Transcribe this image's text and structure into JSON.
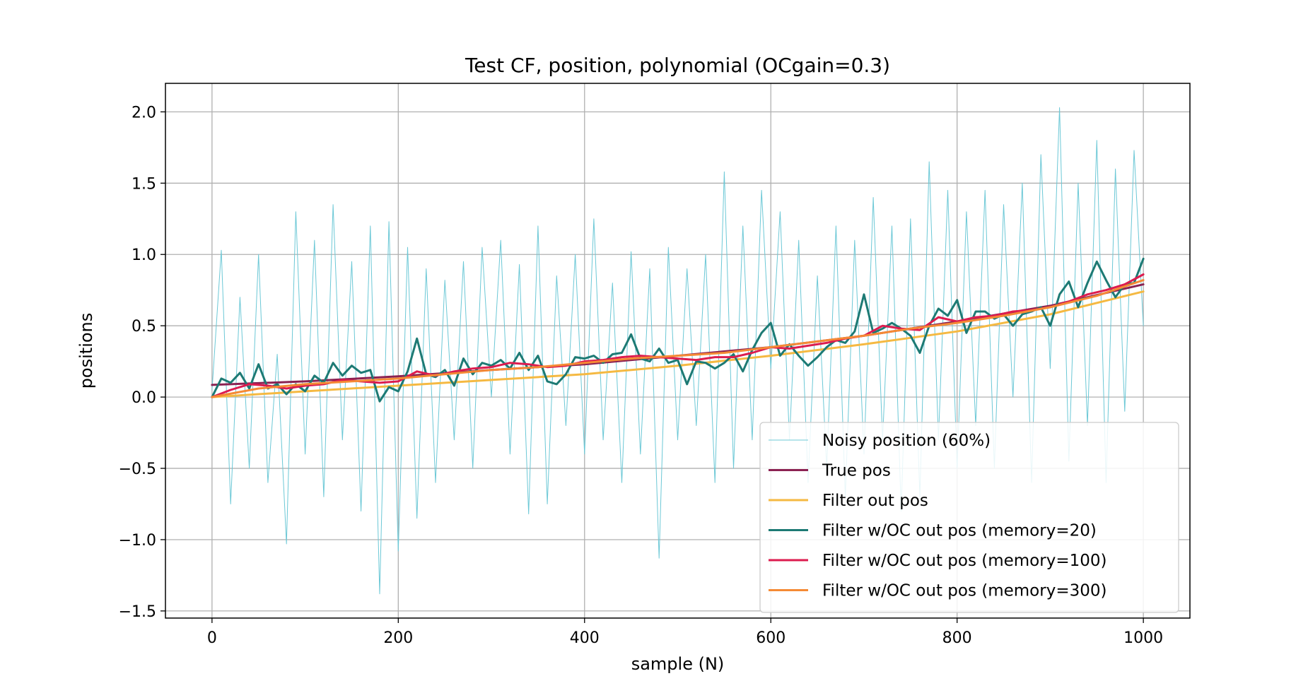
{
  "chart_data": {
    "type": "line",
    "title": "Test CF, position, polynomial (OCgain=0.3)",
    "xlabel": "sample (N)",
    "ylabel": "positions",
    "xlim": [
      -50,
      1050
    ],
    "ylim": [
      -1.55,
      2.2
    ],
    "xticks": [
      0,
      200,
      400,
      600,
      800,
      1000
    ],
    "yticks": [
      -1.5,
      -1.0,
      -0.5,
      0.0,
      0.5,
      1.0,
      1.5,
      2.0
    ],
    "xtick_labels": [
      "0",
      "200",
      "400",
      "600",
      "800",
      "1000"
    ],
    "ytick_labels": [
      "−1.5",
      "−1.0",
      "−0.5",
      "0.0",
      "0.5",
      "1.0",
      "1.5",
      "2.0"
    ],
    "grid": true,
    "legend_location": "lower right",
    "series": [
      {
        "name": "Noisy position (60%)",
        "color": "#6cc8d6",
        "line_width": "thin",
        "x": [
          0,
          10,
          20,
          30,
          40,
          50,
          60,
          70,
          80,
          90,
          100,
          110,
          120,
          130,
          140,
          150,
          160,
          170,
          180,
          190,
          200,
          210,
          220,
          230,
          240,
          250,
          260,
          270,
          280,
          290,
          300,
          310,
          320,
          330,
          340,
          350,
          360,
          370,
          380,
          390,
          400,
          410,
          420,
          430,
          440,
          450,
          460,
          470,
          480,
          490,
          500,
          510,
          520,
          530,
          540,
          550,
          560,
          570,
          580,
          590,
          600,
          610,
          620,
          630,
          640,
          650,
          660,
          670,
          680,
          690,
          700,
          710,
          720,
          730,
          740,
          750,
          760,
          770,
          780,
          790,
          800,
          810,
          820,
          830,
          840,
          850,
          860,
          870,
          880,
          890,
          900,
          910,
          920,
          930,
          940,
          950,
          960,
          970,
          980,
          990,
          1000
        ],
        "values": [
          0.05,
          1.03,
          -0.75,
          0.7,
          -0.5,
          1.0,
          -0.6,
          0.3,
          -1.03,
          1.3,
          -0.4,
          1.1,
          -0.7,
          1.35,
          -0.3,
          0.95,
          -0.8,
          1.2,
          -1.38,
          1.23,
          -1.08,
          1.05,
          -0.85,
          0.9,
          -0.6,
          0.82,
          -0.3,
          0.95,
          -0.5,
          1.05,
          0.0,
          1.1,
          -0.4,
          0.93,
          -0.82,
          1.2,
          -0.75,
          0.85,
          -0.2,
          1.0,
          -0.4,
          1.25,
          -0.3,
          0.8,
          -0.6,
          1.02,
          -0.4,
          0.9,
          -1.13,
          1.05,
          -0.3,
          0.9,
          -0.2,
          1.0,
          -0.6,
          1.58,
          -0.5,
          1.2,
          -0.3,
          1.45,
          0.2,
          1.3,
          -0.3,
          1.1,
          -0.6,
          0.85,
          -0.5,
          1.2,
          -0.7,
          1.1,
          -0.4,
          1.4,
          -0.3,
          1.2,
          -0.8,
          1.25,
          -0.7,
          1.65,
          -0.3,
          1.45,
          -0.5,
          1.3,
          -0.2,
          1.45,
          -0.5,
          1.35,
          0.0,
          1.5,
          -0.6,
          1.7,
          0.2,
          2.03,
          -0.45,
          1.5,
          -0.2,
          1.8,
          -0.6,
          1.6,
          -0.1,
          1.73,
          0.5
        ]
      },
      {
        "name": "True pos",
        "color": "#8b2252",
        "x": [
          0,
          100,
          200,
          300,
          400,
          500,
          600,
          700,
          800,
          900,
          1000
        ],
        "values": [
          0.085,
          0.11,
          0.145,
          0.19,
          0.23,
          0.29,
          0.35,
          0.43,
          0.53,
          0.64,
          0.79
        ]
      },
      {
        "name": "Filter out pos",
        "color": "#f5b942",
        "x": [
          0,
          100,
          200,
          300,
          400,
          500,
          600,
          700,
          800,
          900,
          1000
        ],
        "values": [
          0.0,
          0.04,
          0.08,
          0.12,
          0.16,
          0.22,
          0.29,
          0.37,
          0.46,
          0.58,
          0.74
        ]
      },
      {
        "name": "Filter w/OC out pos (memory=20)",
        "color": "#1d7a74",
        "x": [
          0,
          10,
          20,
          30,
          40,
          50,
          60,
          70,
          80,
          90,
          100,
          110,
          120,
          130,
          140,
          150,
          160,
          170,
          180,
          190,
          200,
          210,
          220,
          230,
          240,
          250,
          260,
          270,
          280,
          290,
          300,
          310,
          320,
          330,
          340,
          350,
          360,
          370,
          380,
          390,
          400,
          410,
          420,
          430,
          440,
          450,
          460,
          470,
          480,
          490,
          500,
          510,
          520,
          530,
          540,
          550,
          560,
          570,
          580,
          590,
          600,
          610,
          620,
          630,
          640,
          650,
          660,
          670,
          680,
          690,
          700,
          710,
          720,
          730,
          740,
          750,
          760,
          770,
          780,
          790,
          800,
          810,
          820,
          830,
          840,
          850,
          860,
          870,
          880,
          890,
          900,
          910,
          920,
          930,
          940,
          950,
          960,
          970,
          980,
          990,
          1000
        ],
        "values": [
          0.0,
          0.13,
          0.1,
          0.17,
          0.06,
          0.23,
          0.06,
          0.09,
          0.02,
          0.09,
          0.04,
          0.15,
          0.1,
          0.24,
          0.15,
          0.22,
          0.17,
          0.19,
          -0.03,
          0.07,
          0.04,
          0.18,
          0.41,
          0.16,
          0.14,
          0.19,
          0.08,
          0.27,
          0.16,
          0.24,
          0.22,
          0.26,
          0.2,
          0.31,
          0.19,
          0.29,
          0.11,
          0.09,
          0.16,
          0.28,
          0.27,
          0.29,
          0.24,
          0.3,
          0.31,
          0.44,
          0.27,
          0.25,
          0.34,
          0.24,
          0.26,
          0.09,
          0.25,
          0.24,
          0.2,
          0.24,
          0.3,
          0.18,
          0.33,
          0.45,
          0.52,
          0.29,
          0.37,
          0.29,
          0.22,
          0.28,
          0.35,
          0.4,
          0.38,
          0.46,
          0.72,
          0.45,
          0.48,
          0.52,
          0.48,
          0.43,
          0.31,
          0.5,
          0.62,
          0.57,
          0.68,
          0.45,
          0.6,
          0.6,
          0.55,
          0.58,
          0.5,
          0.58,
          0.6,
          0.63,
          0.5,
          0.72,
          0.81,
          0.63,
          0.8,
          0.95,
          0.82,
          0.7,
          0.79,
          0.8,
          0.97
        ]
      },
      {
        "name": "Filter w/OC out pos (memory=100)",
        "color": "#dc1c4f",
        "x": [
          0,
          20,
          40,
          60,
          80,
          100,
          120,
          140,
          160,
          180,
          200,
          220,
          240,
          260,
          280,
          300,
          320,
          340,
          360,
          380,
          400,
          420,
          440,
          460,
          480,
          500,
          520,
          540,
          560,
          580,
          600,
          620,
          640,
          660,
          680,
          700,
          720,
          740,
          760,
          780,
          800,
          820,
          840,
          860,
          880,
          900,
          920,
          940,
          960,
          980,
          1000
        ],
        "values": [
          0.0,
          0.05,
          0.09,
          0.08,
          0.06,
          0.08,
          0.09,
          0.12,
          0.11,
          0.1,
          0.11,
          0.18,
          0.15,
          0.18,
          0.2,
          0.21,
          0.24,
          0.23,
          0.21,
          0.22,
          0.25,
          0.26,
          0.28,
          0.29,
          0.28,
          0.27,
          0.26,
          0.28,
          0.28,
          0.31,
          0.35,
          0.34,
          0.36,
          0.38,
          0.41,
          0.43,
          0.5,
          0.48,
          0.47,
          0.56,
          0.53,
          0.56,
          0.57,
          0.6,
          0.61,
          0.63,
          0.67,
          0.72,
          0.75,
          0.79,
          0.86
        ]
      },
      {
        "name": "Filter w/OC out pos (memory=300)",
        "color": "#f58a35",
        "x": [
          0,
          50,
          100,
          150,
          200,
          250,
          300,
          350,
          400,
          450,
          500,
          550,
          600,
          650,
          700,
          750,
          800,
          850,
          900,
          950,
          1000
        ],
        "values": [
          0.0,
          0.06,
          0.09,
          0.11,
          0.13,
          0.16,
          0.19,
          0.21,
          0.24,
          0.27,
          0.29,
          0.31,
          0.35,
          0.39,
          0.43,
          0.48,
          0.52,
          0.57,
          0.63,
          0.71,
          0.82
        ]
      }
    ]
  }
}
